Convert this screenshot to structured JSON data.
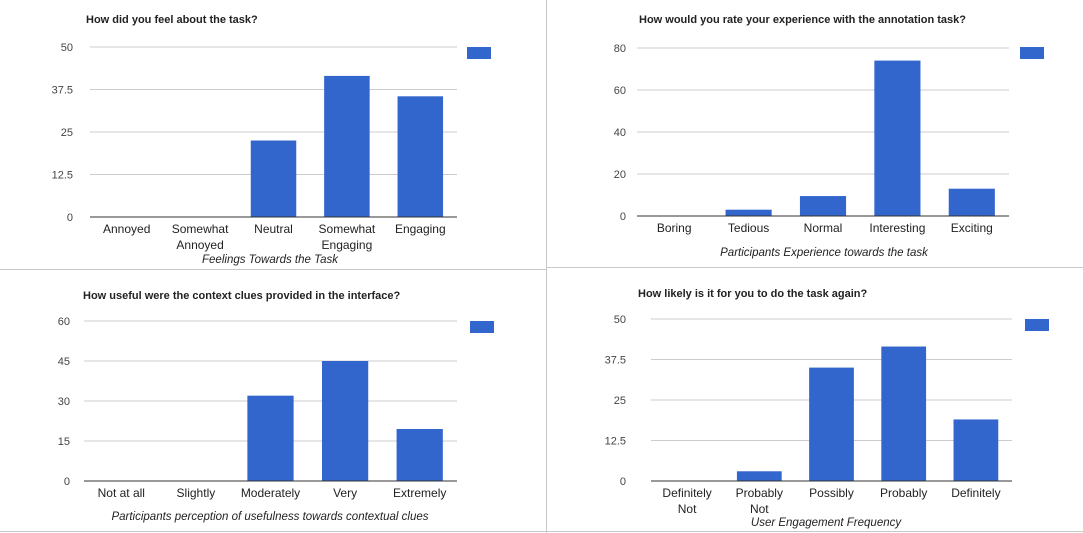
{
  "colors": {
    "bar": "#3366cc",
    "grid": "#cccccc",
    "axis": "#333333"
  },
  "chart_data": [
    {
      "type": "bar",
      "title": "How did you feel about the task?",
      "xlabel": "Feelings Towards the Task",
      "ylabel": "",
      "categories": [
        "Annoyed",
        "Somewhat Annoyed",
        "Neutral",
        "Somewhat Engaging",
        "Engaging"
      ],
      "category_lines": [
        [
          "Annoyed"
        ],
        [
          "Somewhat",
          "Annoyed"
        ],
        [
          "Neutral"
        ],
        [
          "Somewhat",
          "Engaging"
        ],
        [
          "Engaging"
        ]
      ],
      "values": [
        0,
        0,
        22.5,
        41.5,
        35.5
      ],
      "yticks": [
        "0",
        "12.5",
        "25",
        "37.5",
        "50"
      ],
      "ylim": [
        0,
        50
      ],
      "grid": true,
      "legend": "right"
    },
    {
      "type": "bar",
      "title": "How would you rate your experience with the annotation task?",
      "xlabel": "Participants Experience towards the task",
      "ylabel": "",
      "categories": [
        "Boring",
        "Tedious",
        "Normal",
        "Interesting",
        "Exciting"
      ],
      "category_lines": [
        [
          "Boring"
        ],
        [
          "Tedious"
        ],
        [
          "Normal"
        ],
        [
          "Interesting"
        ],
        [
          "Exciting"
        ]
      ],
      "values": [
        0,
        3,
        9.5,
        74,
        13
      ],
      "yticks": [
        "0",
        "20",
        "40",
        "60",
        "80"
      ],
      "ylim": [
        0,
        80
      ],
      "grid": true,
      "legend": "right"
    },
    {
      "type": "bar",
      "title": "How useful were the context clues provided in the interface?",
      "xlabel": "Participants perception of usefulness towards contextual clues",
      "ylabel": "",
      "categories": [
        "Not at all",
        "Slightly",
        "Moderately",
        "Very",
        "Extremely"
      ],
      "category_lines": [
        [
          "Not at all"
        ],
        [
          "Slightly"
        ],
        [
          "Moderately"
        ],
        [
          "Very"
        ],
        [
          "Extremely"
        ]
      ],
      "values": [
        0,
        0,
        32,
        45,
        19.5
      ],
      "yticks": [
        "0",
        "15",
        "30",
        "45",
        "60"
      ],
      "ylim": [
        0,
        60
      ],
      "grid": true,
      "legend": "right"
    },
    {
      "type": "bar",
      "title": "How likely is it for you to do the task again?",
      "xlabel": "User Engagement Frequency",
      "ylabel": "",
      "categories": [
        "Definitely Not",
        "Probably Not",
        "Possibly",
        "Probably",
        "Definitely"
      ],
      "category_lines": [
        [
          "Definitely",
          "Not"
        ],
        [
          "Probably",
          "Not"
        ],
        [
          "Possibly"
        ],
        [
          "Probably"
        ],
        [
          "Definitely"
        ]
      ],
      "values": [
        0,
        3,
        35,
        41.5,
        19
      ],
      "yticks": [
        "0",
        "12.5",
        "25",
        "37.5",
        "50"
      ],
      "ylim": [
        0,
        50
      ],
      "grid": true,
      "legend": "right"
    }
  ]
}
